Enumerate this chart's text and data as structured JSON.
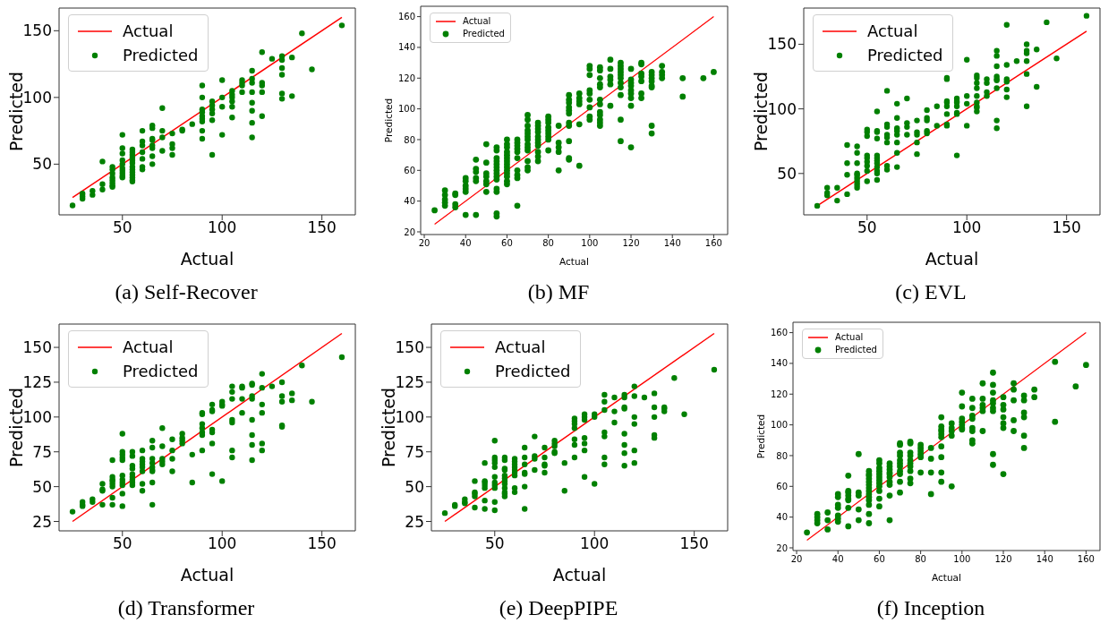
{
  "chart_data": [
    {
      "type": "scatter",
      "title": "(a) Self-Recover",
      "xlabel": "Actual",
      "ylabel": "Predicted",
      "xlim": [
        18.25,
        166.75
      ],
      "ylim": [
        12,
        167
      ],
      "xticks": [
        50,
        100,
        150
      ],
      "yticks": [
        50,
        100,
        150
      ],
      "legend": "top left",
      "series": [
        {
          "name": "Actual",
          "type": "line",
          "marker": "none",
          "color": "#ff0000",
          "x": [
            25,
            160
          ],
          "values": [
            25,
            160
          ]
        },
        {
          "name": "Predicted",
          "type": "scatter",
          "marker": "circle",
          "color": "#008000",
          "x": [
            25,
            30,
            30,
            30,
            35,
            35,
            40,
            40,
            40,
            45,
            45,
            45,
            45,
            45,
            45,
            45,
            45,
            50,
            50,
            50,
            50,
            50,
            50,
            50,
            50,
            50,
            50,
            55,
            55,
            55,
            55,
            55,
            55,
            55,
            55,
            55,
            55,
            55,
            55,
            55,
            60,
            60,
            60,
            60,
            60,
            60,
            60,
            65,
            65,
            65,
            65,
            65,
            65,
            65,
            65,
            70,
            70,
            70,
            70,
            75,
            75,
            75,
            75,
            80,
            80,
            85,
            90,
            90,
            90,
            90,
            90,
            90,
            90,
            90,
            90,
            95,
            95,
            95,
            95,
            95,
            95,
            100,
            100,
            100,
            100,
            105,
            105,
            105,
            105,
            105,
            105,
            110,
            110,
            110,
            110,
            115,
            115,
            115,
            115,
            115,
            115,
            115,
            115,
            120,
            120,
            120,
            120,
            120,
            125,
            130,
            130,
            130,
            130,
            130,
            130,
            135,
            135,
            140,
            145,
            160
          ],
          "values": [
            19,
            28,
            26,
            24,
            30,
            27,
            52,
            35,
            31,
            48,
            46,
            43,
            40,
            38,
            36,
            34,
            33,
            72,
            62,
            58,
            53,
            50,
            47,
            45,
            43,
            41,
            40,
            61,
            59,
            57,
            55,
            53,
            51,
            48,
            46,
            44,
            42,
            40,
            38,
            37,
            75,
            67,
            64,
            59,
            54,
            48,
            46,
            79,
            77,
            69,
            68,
            64,
            62,
            56,
            50,
            92,
            75,
            70,
            60,
            73,
            65,
            62,
            57,
            76,
            75,
            80,
            109,
            100,
            91,
            89,
            86,
            84,
            82,
            75,
            69,
            97,
            94,
            91,
            88,
            83,
            57,
            113,
            100,
            93,
            72,
            105,
            102,
            100,
            97,
            93,
            85,
            113,
            111,
            109,
            104,
            120,
            114,
            111,
            104,
            96,
            90,
            81,
            70,
            134,
            111,
            109,
            104,
            86,
            129,
            131,
            128,
            122,
            117,
            103,
            99,
            130,
            101,
            148,
            121,
            154
          ]
        }
      ]
    },
    {
      "type": "scatter",
      "title": "(b) MF",
      "xlabel": "Actual",
      "ylabel": "Predicted",
      "xlim": [
        18.25,
        166.75
      ],
      "ylim": [
        18.25,
        166.75
      ],
      "xticks": [
        20,
        40,
        60,
        80,
        100,
        120,
        140,
        160
      ],
      "yticks": [
        20,
        40,
        60,
        80,
        100,
        120,
        140,
        160
      ],
      "legend": "top left",
      "series": [
        {
          "name": "Actual",
          "type": "line",
          "marker": "none",
          "color": "#ff0000",
          "x": [
            25,
            160
          ],
          "values": [
            25,
            160
          ]
        },
        {
          "name": "Predicted",
          "type": "scatter",
          "marker": "circle",
          "color": "#008000",
          "x": [
            25,
            30,
            30,
            30,
            30,
            30,
            35,
            35,
            35,
            35,
            40,
            40,
            40,
            40,
            40,
            40,
            45,
            45,
            45,
            45,
            45,
            45,
            50,
            50,
            50,
            50,
            50,
            50,
            50,
            55,
            55,
            55,
            55,
            55,
            55,
            55,
            55,
            55,
            55,
            55,
            55,
            55,
            55,
            60,
            60,
            60,
            60,
            60,
            60,
            60,
            60,
            60,
            60,
            60,
            60,
            60,
            60,
            65,
            65,
            65,
            65,
            65,
            65,
            65,
            65,
            65,
            65,
            70,
            70,
            70,
            70,
            70,
            70,
            70,
            70,
            70,
            70,
            70,
            70,
            70,
            75,
            75,
            75,
            75,
            75,
            75,
            75,
            75,
            75,
            75,
            75,
            80,
            80,
            80,
            80,
            80,
            80,
            80,
            80,
            80,
            85,
            85,
            85,
            85,
            85,
            90,
            90,
            90,
            90,
            90,
            90,
            90,
            90,
            90,
            90,
            90,
            95,
            95,
            95,
            95,
            95,
            95,
            100,
            100,
            100,
            100,
            100,
            100,
            100,
            100,
            100,
            105,
            105,
            105,
            105,
            105,
            105,
            105,
            105,
            105,
            105,
            105,
            105,
            110,
            110,
            110,
            110,
            110,
            110,
            115,
            115,
            115,
            115,
            115,
            115,
            115,
            115,
            115,
            115,
            115,
            120,
            120,
            120,
            120,
            120,
            120,
            120,
            120,
            120,
            125,
            125,
            125,
            125,
            125,
            125,
            125,
            130,
            130,
            130,
            130,
            130,
            130,
            130,
            130,
            135,
            135,
            135,
            135,
            145,
            145,
            155,
            160
          ],
          "values": [
            34,
            47,
            44,
            41,
            39,
            37,
            45,
            44,
            38,
            36,
            55,
            53,
            50,
            48,
            46,
            31,
            67,
            61,
            59,
            55,
            53,
            31,
            77,
            65,
            58,
            56,
            53,
            51,
            46,
            75,
            73,
            68,
            66,
            64,
            62,
            60,
            58,
            56,
            54,
            48,
            46,
            32,
            30,
            80,
            77,
            75,
            72,
            70,
            68,
            66,
            64,
            62,
            60,
            58,
            56,
            53,
            51,
            80,
            78,
            76,
            74,
            72,
            68,
            60,
            57,
            55,
            37,
            96,
            93,
            89,
            86,
            84,
            82,
            80,
            77,
            75,
            73,
            66,
            62,
            60,
            91,
            89,
            87,
            85,
            82,
            80,
            78,
            76,
            72,
            69,
            66,
            95,
            93,
            91,
            88,
            86,
            84,
            82,
            80,
            73,
            89,
            78,
            75,
            72,
            60,
            109,
            106,
            104,
            101,
            99,
            97,
            91,
            89,
            79,
            68,
            67,
            110,
            107,
            105,
            103,
            90,
            63,
            128,
            126,
            122,
            112,
            110,
            106,
            101,
            95,
            93,
            127,
            125,
            120,
            116,
            114,
            106,
            103,
            98,
            96,
            93,
            91,
            89,
            132,
            126,
            121,
            119,
            116,
            102,
            130,
            128,
            126,
            124,
            122,
            120,
            117,
            114,
            109,
            93,
            79,
            126,
            119,
            117,
            115,
            112,
            110,
            107,
            102,
            75,
            130,
            129,
            123,
            121,
            118,
            110,
            107,
            124,
            122,
            120,
            118,
            115,
            114,
            89,
            84,
            128,
            124,
            122,
            120,
            120,
            108,
            120,
            124
          ]
        }
      ]
    },
    {
      "type": "scatter",
      "title": "(c) EVL",
      "xlabel": "Actual",
      "ylabel": "Predicted",
      "xlim": [
        18.25,
        166.75
      ],
      "ylim": [
        18,
        178
      ],
      "xticks": [
        50,
        100,
        150
      ],
      "yticks": [
        50,
        100,
        150
      ],
      "legend": "top left",
      "series": [
        {
          "name": "Actual",
          "type": "line",
          "marker": "none",
          "color": "#ff0000",
          "x": [
            25,
            160
          ],
          "values": [
            25,
            160
          ]
        },
        {
          "name": "Predicted",
          "type": "scatter",
          "marker": "circle",
          "color": "#008000",
          "x": [
            25,
            30,
            30,
            30,
            35,
            35,
            40,
            40,
            40,
            40,
            45,
            45,
            45,
            45,
            45,
            45,
            45,
            45,
            45,
            45,
            50,
            50,
            50,
            50,
            50,
            50,
            50,
            50,
            50,
            55,
            55,
            55,
            55,
            55,
            55,
            55,
            55,
            55,
            55,
            55,
            55,
            60,
            60,
            60,
            60,
            60,
            60,
            60,
            60,
            65,
            65,
            65,
            65,
            65,
            65,
            65,
            65,
            70,
            70,
            70,
            70,
            75,
            75,
            75,
            75,
            75,
            80,
            80,
            80,
            80,
            80,
            85,
            85,
            90,
            90,
            90,
            90,
            90,
            90,
            90,
            90,
            95,
            95,
            95,
            95,
            95,
            95,
            95,
            100,
            100,
            100,
            100,
            105,
            105,
            105,
            105,
            105,
            105,
            105,
            105,
            105,
            110,
            110,
            110,
            110,
            115,
            115,
            115,
            115,
            115,
            115,
            115,
            115,
            115,
            120,
            120,
            120,
            120,
            120,
            120,
            125,
            130,
            130,
            130,
            130,
            130,
            130,
            135,
            135,
            140,
            145,
            160
          ],
          "values": [
            25,
            39,
            35,
            33,
            39,
            29,
            72,
            58,
            49,
            34,
            71,
            66,
            58,
            50,
            49,
            47,
            45,
            43,
            41,
            39,
            84,
            82,
            79,
            64,
            62,
            59,
            56,
            52,
            44,
            98,
            83,
            82,
            77,
            64,
            62,
            60,
            58,
            55,
            52,
            50,
            45,
            114,
            88,
            86,
            80,
            78,
            74,
            56,
            53,
            104,
            93,
            85,
            83,
            80,
            74,
            66,
            55,
            108,
            89,
            86,
            80,
            91,
            82,
            80,
            74,
            65,
            99,
            93,
            91,
            83,
            81,
            102,
            87,
            124,
            123,
            106,
            105,
            102,
            96,
            88,
            87,
            108,
            106,
            105,
            102,
            97,
            96,
            64,
            138,
            110,
            104,
            87,
            126,
            124,
            120,
            116,
            110,
            105,
            102,
            101,
            98,
            123,
            120,
            113,
            110,
            145,
            141,
            133,
            125,
            123,
            122,
            116,
            91,
            85,
            165,
            134,
            123,
            121,
            115,
            109,
            137,
            150,
            145,
            143,
            137,
            127,
            102,
            146,
            117,
            167,
            139,
            172
          ]
        }
      ]
    },
    {
      "type": "scatter",
      "title": "(d) Transformer",
      "xlabel": "Actual",
      "ylabel": "Predicted",
      "xlim": [
        18.25,
        166.75
      ],
      "ylim": [
        18.25,
        166.75
      ],
      "xticks": [
        50,
        100,
        150
      ],
      "yticks": [
        25,
        50,
        75,
        100,
        125,
        150
      ],
      "legend": "top left",
      "series": [
        {
          "name": "Actual",
          "type": "line",
          "marker": "none",
          "color": "#ff0000",
          "x": [
            25,
            160
          ],
          "values": [
            25,
            160
          ]
        },
        {
          "name": "Predicted",
          "type": "scatter",
          "marker": "circle",
          "color": "#008000",
          "x": [
            25,
            30,
            30,
            30,
            35,
            35,
            40,
            40,
            40,
            40,
            45,
            45,
            45,
            45,
            45,
            45,
            45,
            45,
            50,
            50,
            50,
            50,
            50,
            50,
            50,
            50,
            50,
            50,
            50,
            55,
            55,
            55,
            55,
            55,
            55,
            55,
            55,
            55,
            60,
            60,
            60,
            60,
            60,
            60,
            60,
            60,
            65,
            65,
            65,
            65,
            65,
            65,
            65,
            65,
            65,
            70,
            70,
            70,
            70,
            70,
            75,
            75,
            75,
            75,
            80,
            80,
            80,
            80,
            85,
            85,
            90,
            90,
            90,
            90,
            90,
            90,
            90,
            95,
            95,
            95,
            95,
            95,
            95,
            95,
            100,
            100,
            100,
            100,
            105,
            105,
            105,
            105,
            105,
            105,
            105,
            110,
            110,
            110,
            110,
            115,
            115,
            115,
            115,
            115,
            115,
            115,
            115,
            120,
            120,
            120,
            120,
            120,
            120,
            125,
            130,
            130,
            130,
            130,
            130,
            135,
            135,
            140,
            145,
            160
          ],
          "values": [
            32,
            39,
            37,
            36,
            41,
            39,
            52,
            48,
            47,
            37,
            69,
            57,
            55,
            54,
            52,
            50,
            42,
            37,
            88,
            75,
            73,
            71,
            69,
            58,
            55,
            53,
            51,
            45,
            36,
            75,
            72,
            65,
            63,
            59,
            57,
            55,
            53,
            51,
            76,
            70,
            68,
            66,
            64,
            61,
            52,
            47,
            83,
            78,
            70,
            67,
            64,
            62,
            61,
            53,
            37,
            92,
            79,
            70,
            68,
            66,
            84,
            76,
            70,
            61,
            88,
            85,
            83,
            81,
            73,
            53,
            103,
            102,
            95,
            92,
            89,
            87,
            76,
            109,
            105,
            104,
            91,
            89,
            81,
            59,
            111,
            109,
            108,
            54,
            122,
            118,
            113,
            98,
            96,
            76,
            71,
            122,
            121,
            113,
            103,
            124,
            123,
            115,
            113,
            98,
            87,
            80,
            69,
            131,
            121,
            109,
            103,
            81,
            76,
            122,
            125,
            115,
            111,
            94,
            93,
            117,
            112,
            137,
            111,
            143
          ]
        }
      ]
    },
    {
      "type": "scatter",
      "title": "(e) DeepPIPE",
      "xlabel": "Actual",
      "ylabel": "Predicted",
      "xlim": [
        18.25,
        166.75
      ],
      "ylim": [
        18.25,
        166.75
      ],
      "xticks": [
        50,
        100,
        150
      ],
      "yticks": [
        25,
        50,
        75,
        100,
        125,
        150
      ],
      "legend": "top left",
      "series": [
        {
          "name": "Actual",
          "type": "line",
          "marker": "none",
          "color": "#ff0000",
          "x": [
            25,
            160
          ],
          "values": [
            25,
            160
          ]
        },
        {
          "name": "Predicted",
          "type": "scatter",
          "marker": "circle",
          "color": "#008000",
          "x": [
            25,
            30,
            30,
            35,
            35,
            35,
            40,
            40,
            40,
            40,
            40,
            45,
            45,
            45,
            45,
            45,
            45,
            45,
            50,
            50,
            50,
            50,
            50,
            50,
            50,
            50,
            50,
            50,
            50,
            55,
            55,
            55,
            55,
            55,
            55,
            55,
            55,
            55,
            55,
            55,
            55,
            60,
            60,
            60,
            60,
            60,
            60,
            60,
            60,
            60,
            65,
            65,
            65,
            65,
            65,
            65,
            65,
            70,
            70,
            70,
            70,
            75,
            75,
            75,
            75,
            75,
            80,
            80,
            80,
            80,
            80,
            85,
            85,
            90,
            90,
            90,
            90,
            90,
            90,
            90,
            95,
            95,
            95,
            95,
            95,
            95,
            95,
            100,
            100,
            100,
            105,
            105,
            105,
            105,
            105,
            105,
            105,
            110,
            110,
            110,
            115,
            115,
            115,
            115,
            115,
            115,
            115,
            115,
            120,
            120,
            120,
            120,
            120,
            120,
            125,
            130,
            130,
            130,
            130,
            130,
            135,
            135,
            135,
            140,
            145,
            160
          ],
          "values": [
            31,
            37,
            36,
            41,
            39,
            38,
            54,
            46,
            45,
            43,
            35,
            67,
            54,
            53,
            51,
            49,
            40,
            34,
            83,
            71,
            69,
            67,
            64,
            57,
            53,
            51,
            49,
            39,
            33,
            71,
            69,
            63,
            62,
            58,
            56,
            54,
            52,
            49,
            46,
            45,
            43,
            70,
            68,
            66,
            64,
            62,
            60,
            58,
            49,
            46,
            78,
            71,
            66,
            60,
            59,
            50,
            34,
            86,
            72,
            70,
            62,
            78,
            71,
            66,
            65,
            60,
            83,
            81,
            79,
            75,
            74,
            67,
            47,
            99,
            97,
            95,
            92,
            84,
            80,
            71,
            102,
            100,
            98,
            85,
            81,
            76,
            57,
            102,
            100,
            52,
            116,
            111,
            105,
            89,
            86,
            71,
            66,
            114,
            104,
            96,
            116,
            114,
            107,
            106,
            88,
            80,
            74,
            65,
            122,
            115,
            100,
            95,
            76,
            67,
            114,
            117,
            107,
            100,
            87,
            85,
            107,
            106,
            104,
            128,
            102,
            134
          ]
        }
      ]
    },
    {
      "type": "scatter",
      "title": "(f) Inception",
      "xlabel": "Actual",
      "ylabel": "Predicted",
      "xlim": [
        18.25,
        166.75
      ],
      "ylim": [
        18.25,
        166.75
      ],
      "xticks": [
        20,
        40,
        60,
        80,
        100,
        120,
        140,
        160
      ],
      "yticks": [
        20,
        40,
        60,
        80,
        100,
        120,
        140,
        160
      ],
      "legend": "top left",
      "series": [
        {
          "name": "Actual",
          "type": "line",
          "marker": "none",
          "color": "#ff0000",
          "x": [
            25,
            160
          ],
          "values": [
            25,
            160
          ]
        },
        {
          "name": "Predicted",
          "type": "scatter",
          "marker": "circle",
          "color": "#008000",
          "x": [
            25,
            30,
            30,
            30,
            30,
            35,
            35,
            35,
            40,
            40,
            40,
            40,
            40,
            40,
            40,
            45,
            45,
            45,
            45,
            45,
            45,
            45,
            45,
            50,
            50,
            50,
            50,
            50,
            55,
            55,
            55,
            55,
            55,
            55,
            55,
            55,
            55,
            55,
            55,
            55,
            55,
            55,
            60,
            60,
            60,
            60,
            60,
            60,
            60,
            60,
            60,
            60,
            60,
            60,
            65,
            65,
            65,
            65,
            65,
            65,
            65,
            65,
            65,
            65,
            70,
            70,
            70,
            70,
            70,
            70,
            70,
            70,
            70,
            70,
            70,
            75,
            75,
            75,
            75,
            75,
            75,
            75,
            75,
            75,
            75,
            80,
            80,
            80,
            80,
            80,
            80,
            85,
            85,
            85,
            85,
            90,
            90,
            90,
            90,
            90,
            90,
            90,
            90,
            90,
            90,
            95,
            95,
            95,
            95,
            95,
            100,
            100,
            100,
            100,
            100,
            100,
            100,
            105,
            105,
            105,
            105,
            105,
            105,
            105,
            105,
            110,
            110,
            110,
            110,
            110,
            110,
            115,
            115,
            115,
            115,
            115,
            115,
            115,
            115,
            115,
            120,
            120,
            120,
            120,
            120,
            120,
            120,
            125,
            125,
            125,
            125,
            125,
            130,
            130,
            130,
            130,
            130,
            130,
            135,
            135,
            145,
            145,
            155,
            160
          ],
          "values": [
            30,
            42,
            40,
            38,
            36,
            43,
            38,
            32,
            55,
            53,
            48,
            46,
            41,
            39,
            37,
            67,
            57,
            56,
            54,
            52,
            51,
            46,
            34,
            81,
            56,
            54,
            45,
            38,
            70,
            68,
            67,
            65,
            63,
            61,
            59,
            57,
            55,
            53,
            51,
            48,
            42,
            36,
            77,
            75,
            72,
            70,
            68,
            66,
            64,
            62,
            60,
            57,
            52,
            47,
            75,
            73,
            71,
            69,
            68,
            66,
            63,
            61,
            54,
            38,
            88,
            87,
            82,
            80,
            77,
            75,
            73,
            70,
            68,
            63,
            56,
            89,
            88,
            82,
            80,
            77,
            75,
            73,
            70,
            65,
            62,
            87,
            85,
            83,
            81,
            79,
            69,
            85,
            78,
            69,
            55,
            105,
            99,
            97,
            96,
            94,
            92,
            86,
            79,
            69,
            63,
            101,
            98,
            96,
            93,
            60,
            121,
            112,
            104,
            102,
            100,
            98,
            97,
            117,
            111,
            106,
            104,
            98,
            96,
            90,
            88,
            127,
            117,
            113,
            111,
            109,
            96,
            134,
            126,
            121,
            116,
            114,
            111,
            109,
            81,
            74,
            118,
            113,
            110,
            105,
            101,
            98,
            68,
            127,
            123,
            116,
            103,
            96,
            119,
            116,
            108,
            105,
            93,
            85,
            123,
            118,
            141,
            102,
            125,
            139
          ]
        }
      ]
    }
  ]
}
